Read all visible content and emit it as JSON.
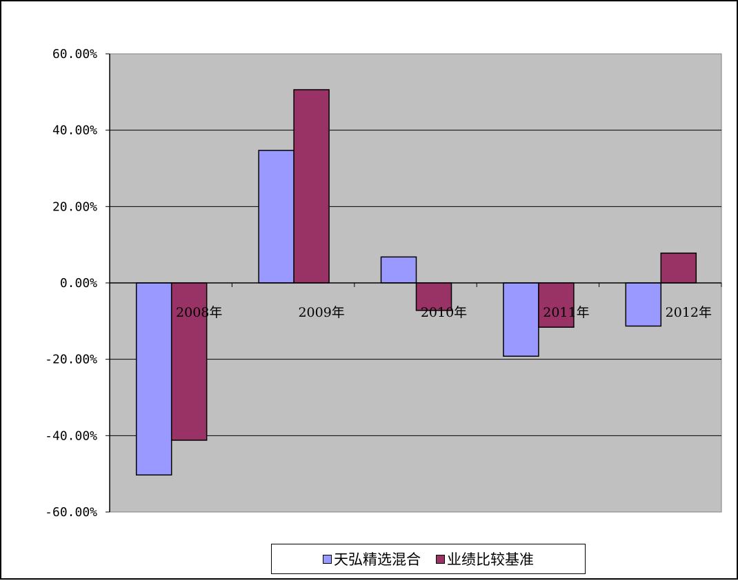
{
  "chart_data": {
    "type": "bar",
    "title": "",
    "xlabel": "",
    "ylabel": "",
    "categories": [
      "2008年",
      "2009年",
      "2010年",
      "2011年",
      "2012年"
    ],
    "series": [
      {
        "name": "天弘精选混合",
        "values": [
          -50.3,
          34.7,
          6.8,
          -19.2,
          -11.3
        ],
        "color": "#9999ff"
      },
      {
        "name": "业绩比较基准",
        "values": [
          -41.2,
          50.6,
          -7.2,
          -11.6,
          7.8
        ],
        "color": "#993366"
      }
    ],
    "ylim": [
      -60,
      60
    ],
    "yticks": [
      60,
      40,
      20,
      0,
      -20,
      -40,
      -60
    ],
    "ytick_labels": [
      "60.00%",
      "40.00%",
      "20.00%",
      "0.00%",
      "-20.00%",
      "-40.00%",
      "-60.00%"
    ],
    "grid": true,
    "plot_background": "#c0c0c0",
    "legend_position": "bottom"
  }
}
